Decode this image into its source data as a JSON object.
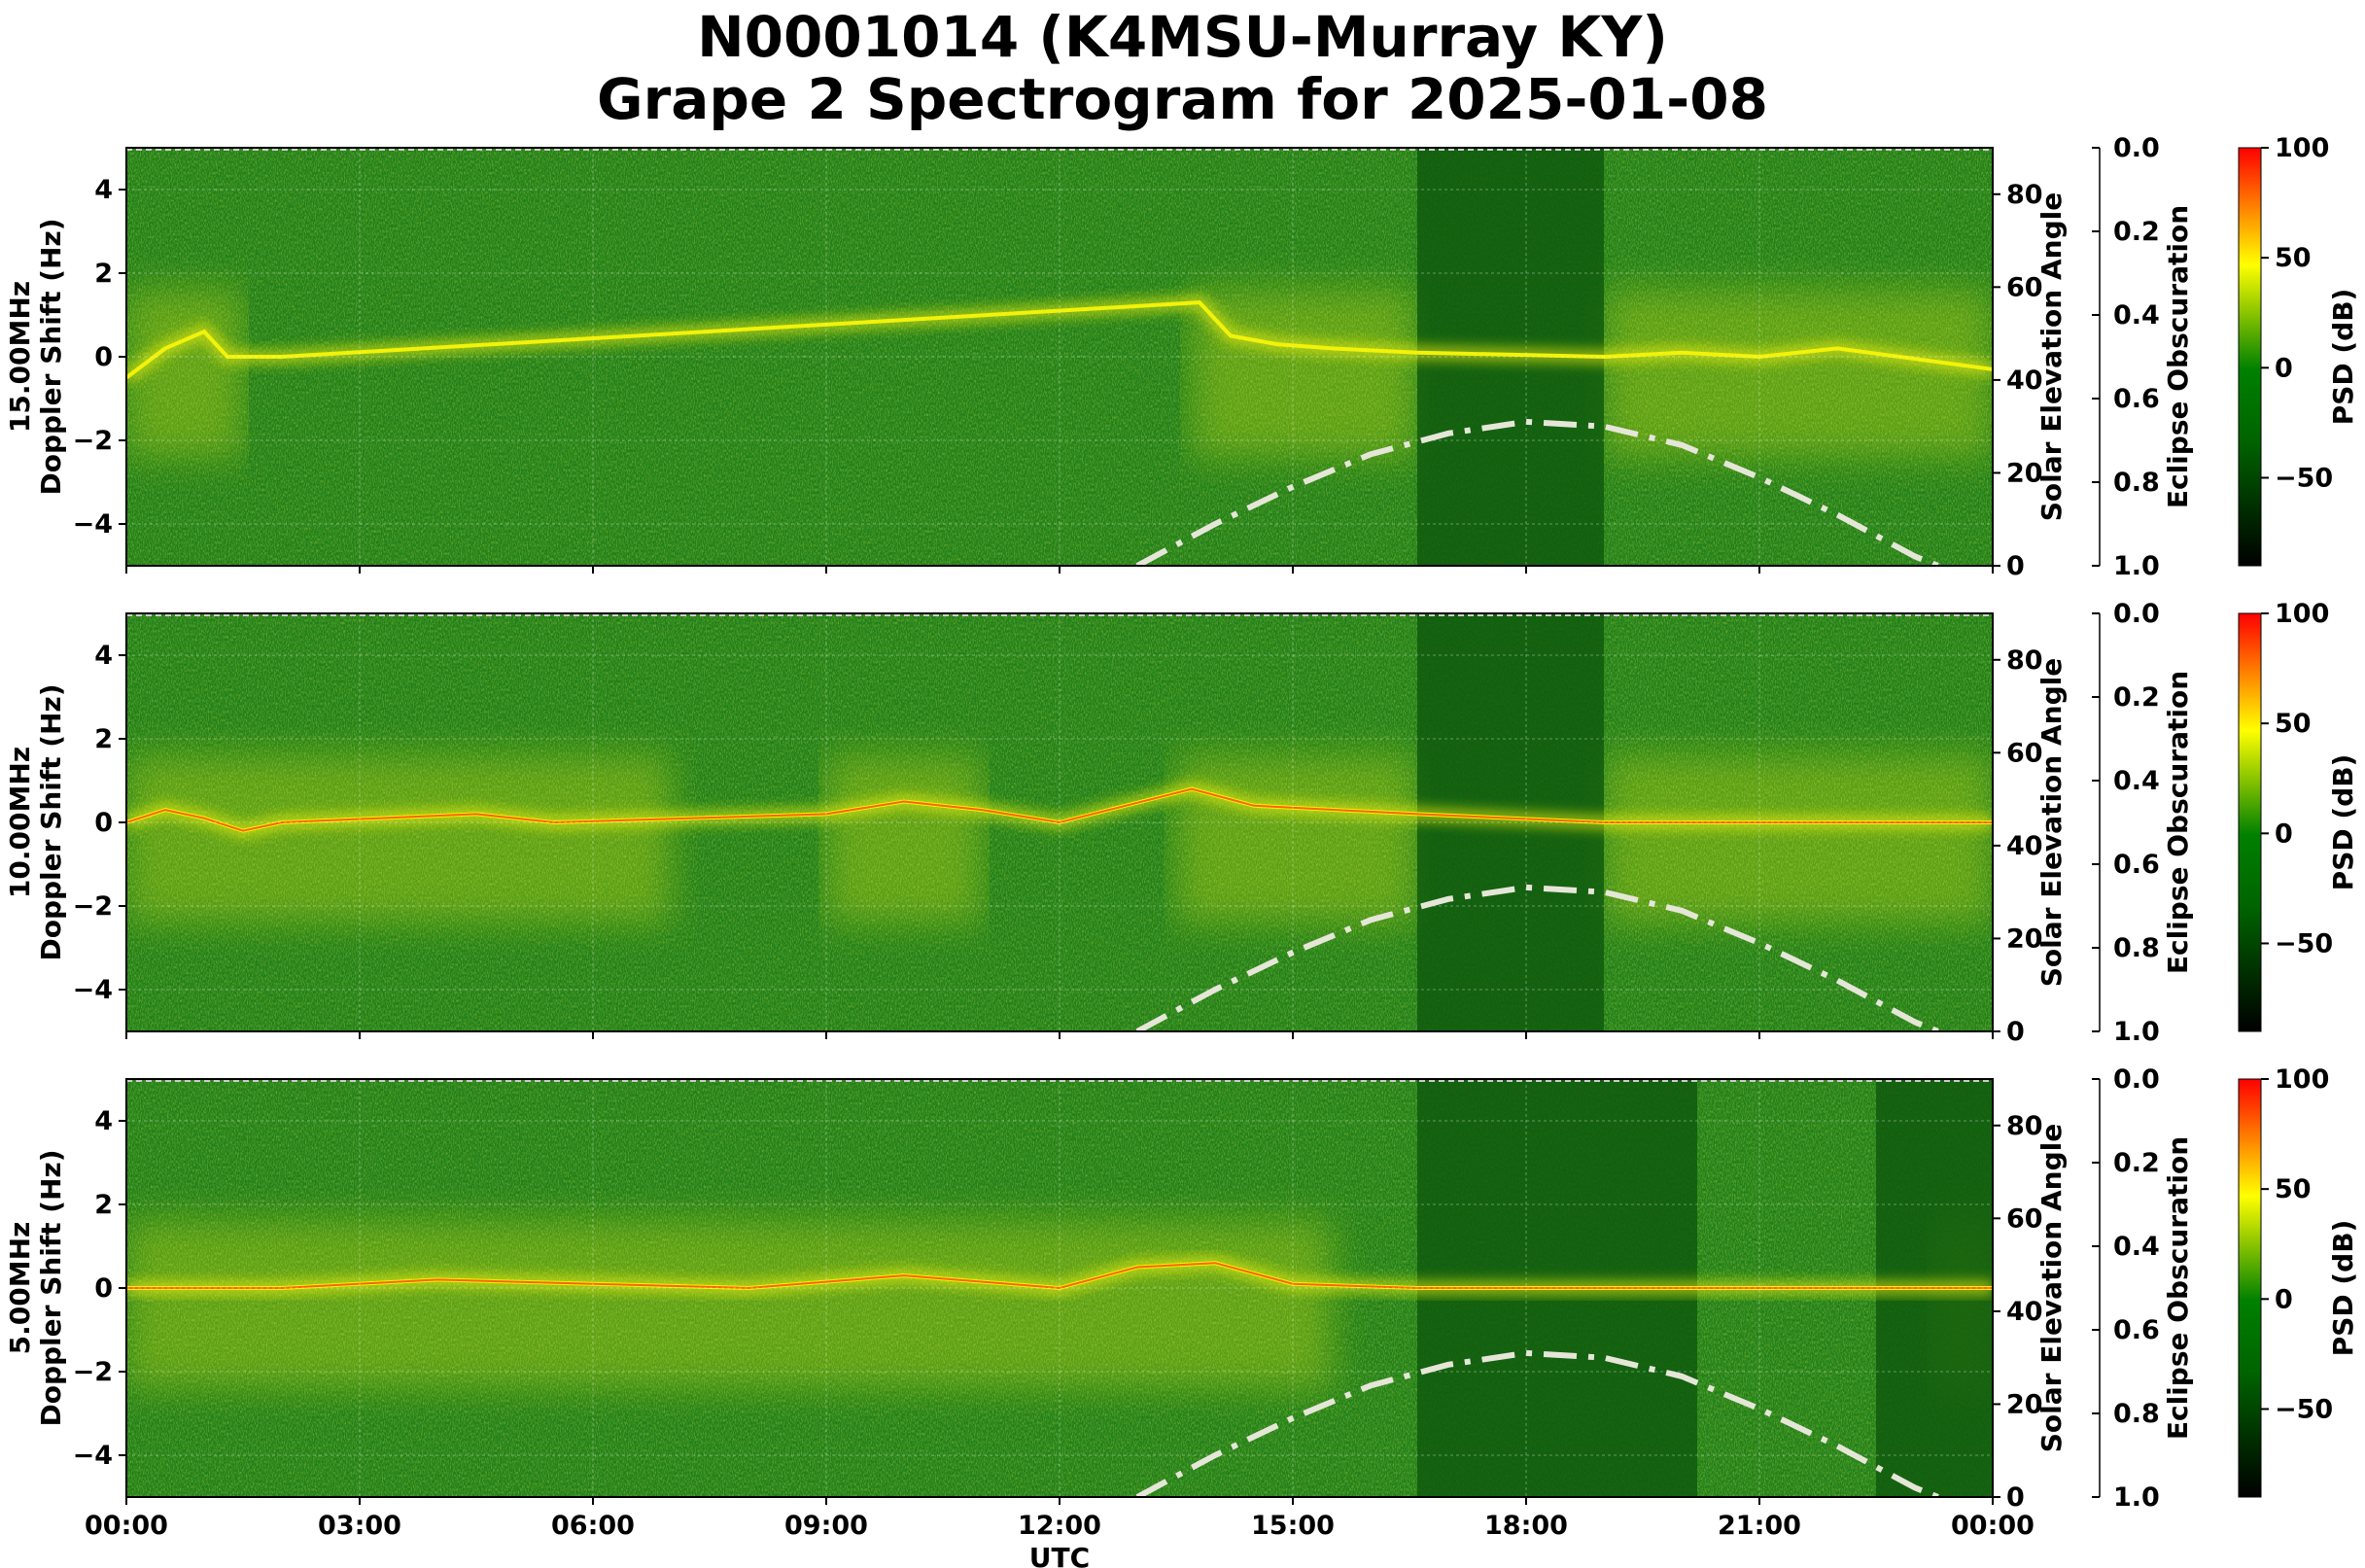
{
  "figure": {
    "title_line1": "N0001014 (K4MSU-Murray KY)",
    "title_line2": "Grape 2 Spectrogram for 2025-01-08"
  },
  "chart_data": [
    {
      "type": "heatmap",
      "panel": "15.00MHz",
      "ylabel_line1": "15.00MHz",
      "ylabel_line2": "Doppler Shift (Hz)",
      "xlabel": "",
      "ylim": [
        -5,
        5
      ],
      "yticks": [
        "4",
        "2",
        "0",
        "−2",
        "−4"
      ],
      "y2label": "Solar Elevation Angle",
      "y2lim": [
        0,
        90
      ],
      "y2ticks": [
        "0",
        "20",
        "40",
        "60",
        "80"
      ],
      "y3label": "Eclipse Obscuration",
      "y3ticks": [
        "0.0",
        "0.2",
        "0.4",
        "0.6",
        "0.8",
        "1.0"
      ],
      "colorbar_label": "PSD (dB)",
      "colorbar_ticks": [
        "100",
        "50",
        "0",
        "−50"
      ],
      "dark_band_hours": [
        [
          16.6,
          19.0
        ]
      ],
      "bright_line_hz": [
        [
          0,
          -0.5
        ],
        [
          0.5,
          0.2
        ],
        [
          1.0,
          0.6
        ],
        [
          1.3,
          0.0
        ],
        [
          2,
          0
        ],
        [
          13.8,
          1.3
        ],
        [
          14.2,
          0.5
        ],
        [
          14.8,
          0.3
        ],
        [
          15.5,
          0.2
        ],
        [
          16.6,
          0.1
        ],
        [
          19.0,
          0.0
        ],
        [
          20,
          0.1
        ],
        [
          21,
          0.0
        ],
        [
          22,
          0.2
        ],
        [
          24,
          -0.3
        ]
      ],
      "activity_segments_hours": [
        [
          0,
          1.5
        ],
        [
          13.7,
          16.6
        ],
        [
          19.0,
          24
        ]
      ],
      "solar_elevation": {
        "x_hours": [
          13,
          14,
          15,
          16,
          17,
          18,
          19,
          20,
          21,
          22,
          23,
          23.3
        ],
        "deg": [
          0,
          9,
          17,
          24,
          28.5,
          31,
          30,
          26,
          19,
          11,
          2,
          0
        ]
      }
    },
    {
      "type": "heatmap",
      "panel": "10.00MHz",
      "ylabel_line1": "10.00MHz",
      "ylabel_line2": "Doppler Shift (Hz)",
      "xlabel": "",
      "ylim": [
        -5,
        5
      ],
      "yticks": [
        "4",
        "2",
        "0",
        "−2",
        "−4"
      ],
      "y2label": "Solar Elevation Angle",
      "y2lim": [
        0,
        90
      ],
      "y2ticks": [
        "0",
        "20",
        "40",
        "60",
        "80"
      ],
      "y3label": "Eclipse Obscuration",
      "y3ticks": [
        "0.0",
        "0.2",
        "0.4",
        "0.6",
        "0.8",
        "1.0"
      ],
      "colorbar_label": "PSD (dB)",
      "colorbar_ticks": [
        "100",
        "50",
        "0",
        "−50"
      ],
      "dark_band_hours": [
        [
          16.6,
          19.0
        ]
      ],
      "bright_line_hz": [
        [
          0,
          0.0
        ],
        [
          0.5,
          0.3
        ],
        [
          1.0,
          0.1
        ],
        [
          1.5,
          -0.2
        ],
        [
          2,
          0
        ],
        [
          4.5,
          0.2
        ],
        [
          5.5,
          0.0
        ],
        [
          9,
          0.2
        ],
        [
          10,
          0.5
        ],
        [
          11,
          0.3
        ],
        [
          12,
          0.0
        ],
        [
          13.7,
          0.8
        ],
        [
          14.5,
          0.4
        ],
        [
          16.6,
          0.2
        ],
        [
          19.0,
          0.0
        ],
        [
          21,
          0.0
        ],
        [
          24,
          0.0
        ]
      ],
      "activity_segments_hours": [
        [
          0,
          7
        ],
        [
          9,
          11
        ],
        [
          13.5,
          16.6
        ],
        [
          19.0,
          24
        ]
      ],
      "solar_elevation": {
        "x_hours": [
          13,
          14,
          15,
          16,
          17,
          18,
          19,
          20,
          21,
          22,
          23,
          23.3
        ],
        "deg": [
          0,
          9,
          17,
          24,
          28.5,
          31,
          30,
          26,
          19,
          11,
          2,
          0
        ]
      }
    },
    {
      "type": "heatmap",
      "panel": "5.00MHz",
      "ylabel_line1": "5.00MHz",
      "ylabel_line2": "Doppler Shift (Hz)",
      "xlabel": "UTC",
      "xticks": [
        "00:00",
        "03:00",
        "06:00",
        "09:00",
        "12:00",
        "15:00",
        "18:00",
        "21:00",
        "00:00"
      ],
      "ylim": [
        -5,
        5
      ],
      "yticks": [
        "4",
        "2",
        "0",
        "−2",
        "−4"
      ],
      "y2label": "Solar Elevation Angle",
      "y2lim": [
        0,
        90
      ],
      "y2ticks": [
        "0",
        "20",
        "40",
        "60",
        "80"
      ],
      "y3label": "Eclipse Obscuration",
      "y3ticks": [
        "0.0",
        "0.2",
        "0.4",
        "0.6",
        "0.8",
        "1.0"
      ],
      "colorbar_label": "PSD (dB)",
      "colorbar_ticks": [
        "100",
        "50",
        "0",
        "−50"
      ],
      "dark_band_hours": [
        [
          16.6,
          20.2
        ],
        [
          22.5,
          24
        ]
      ],
      "bright_line_hz": [
        [
          0,
          0.0
        ],
        [
          2,
          0.0
        ],
        [
          4,
          0.2
        ],
        [
          6,
          0.1
        ],
        [
          8,
          0.0
        ],
        [
          10,
          0.3
        ],
        [
          12,
          0.0
        ],
        [
          13,
          0.5
        ],
        [
          14,
          0.6
        ],
        [
          15,
          0.1
        ],
        [
          16.6,
          0.0
        ],
        [
          24,
          0.0
        ]
      ],
      "activity_segments_hours": [
        [
          0,
          15.5
        ],
        [
          23.2,
          24
        ]
      ],
      "solar_elevation": {
        "x_hours": [
          13,
          14,
          15,
          16,
          17,
          18,
          19,
          20,
          21,
          22,
          23,
          23.3
        ],
        "deg": [
          0,
          9,
          17,
          24,
          28.5,
          31,
          30,
          26,
          19,
          11,
          2,
          0
        ]
      }
    }
  ],
  "colors": {
    "background_green": "#1f7f1a",
    "dark_green": "#0f5a0e",
    "yellow": "#f2f20a",
    "red": "#ff2a00",
    "solar_curve": "#e6e6d8"
  }
}
